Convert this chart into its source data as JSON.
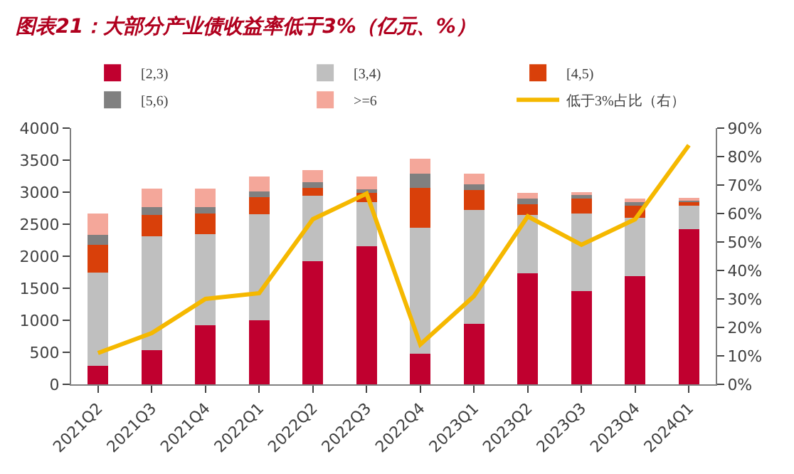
{
  "chart_data": {
    "type": "bar",
    "stacked": true,
    "title": "图表21：大部分产业债收益率低于3%（亿元、%）",
    "categories": [
      "2021Q2",
      "2021Q3",
      "2021Q4",
      "2022Q1",
      "2022Q2",
      "2022Q3",
      "2022Q4",
      "2023Q1",
      "2023Q2",
      "2023Q3",
      "2023Q4",
      "2024Q1"
    ],
    "series": [
      {
        "name": "[2,3)",
        "color": "#c0002f",
        "values": [
          290,
          530,
          920,
          1000,
          1920,
          2160,
          480,
          950,
          1730,
          1460,
          1690,
          2420
        ]
      },
      {
        "name": "[3,4)",
        "color": "#bfbfbf",
        "values": [
          1460,
          1780,
          1430,
          1660,
          1020,
          690,
          1970,
          1770,
          920,
          1210,
          910,
          370
        ]
      },
      {
        "name": "[4,5)",
        "color": "#d9400a",
        "values": [
          430,
          330,
          320,
          260,
          130,
          140,
          620,
          310,
          160,
          230,
          190,
          60
        ]
      },
      {
        "name": "[5,6)",
        "color": "#808080",
        "values": [
          150,
          130,
          100,
          90,
          90,
          50,
          220,
          90,
          90,
          70,
          50,
          30
        ]
      },
      {
        "name": ">=6",
        "color": "#f4a79a",
        "values": [
          340,
          290,
          290,
          230,
          180,
          200,
          230,
          170,
          90,
          30,
          60,
          20
        ]
      },
      {
        "name": "低于3%占比（右）",
        "type": "line",
        "axis": "y2",
        "color": "#f5b800",
        "values": [
          11,
          18,
          30,
          32,
          58,
          67,
          14,
          31,
          59,
          49,
          58,
          84
        ]
      }
    ],
    "ylim": [
      0,
      4000
    ],
    "yticks": [
      0,
      500,
      1000,
      1500,
      2000,
      2500,
      3000,
      3500,
      4000
    ],
    "y2lim": [
      0,
      90
    ],
    "y2ticks": [
      {
        "value": 0,
        "label": "0%"
      },
      {
        "value": 10,
        "label": "10%"
      },
      {
        "value": 20,
        "label": "20%"
      },
      {
        "value": 30,
        "label": "30%"
      },
      {
        "value": 40,
        "label": "40%"
      },
      {
        "value": 50,
        "label": "50%"
      },
      {
        "value": 60,
        "label": "60%"
      },
      {
        "value": 70,
        "label": "70%"
      },
      {
        "value": 80,
        "label": "80%"
      },
      {
        "value": 90,
        "label": "90%"
      }
    ],
    "legend": "top"
  }
}
